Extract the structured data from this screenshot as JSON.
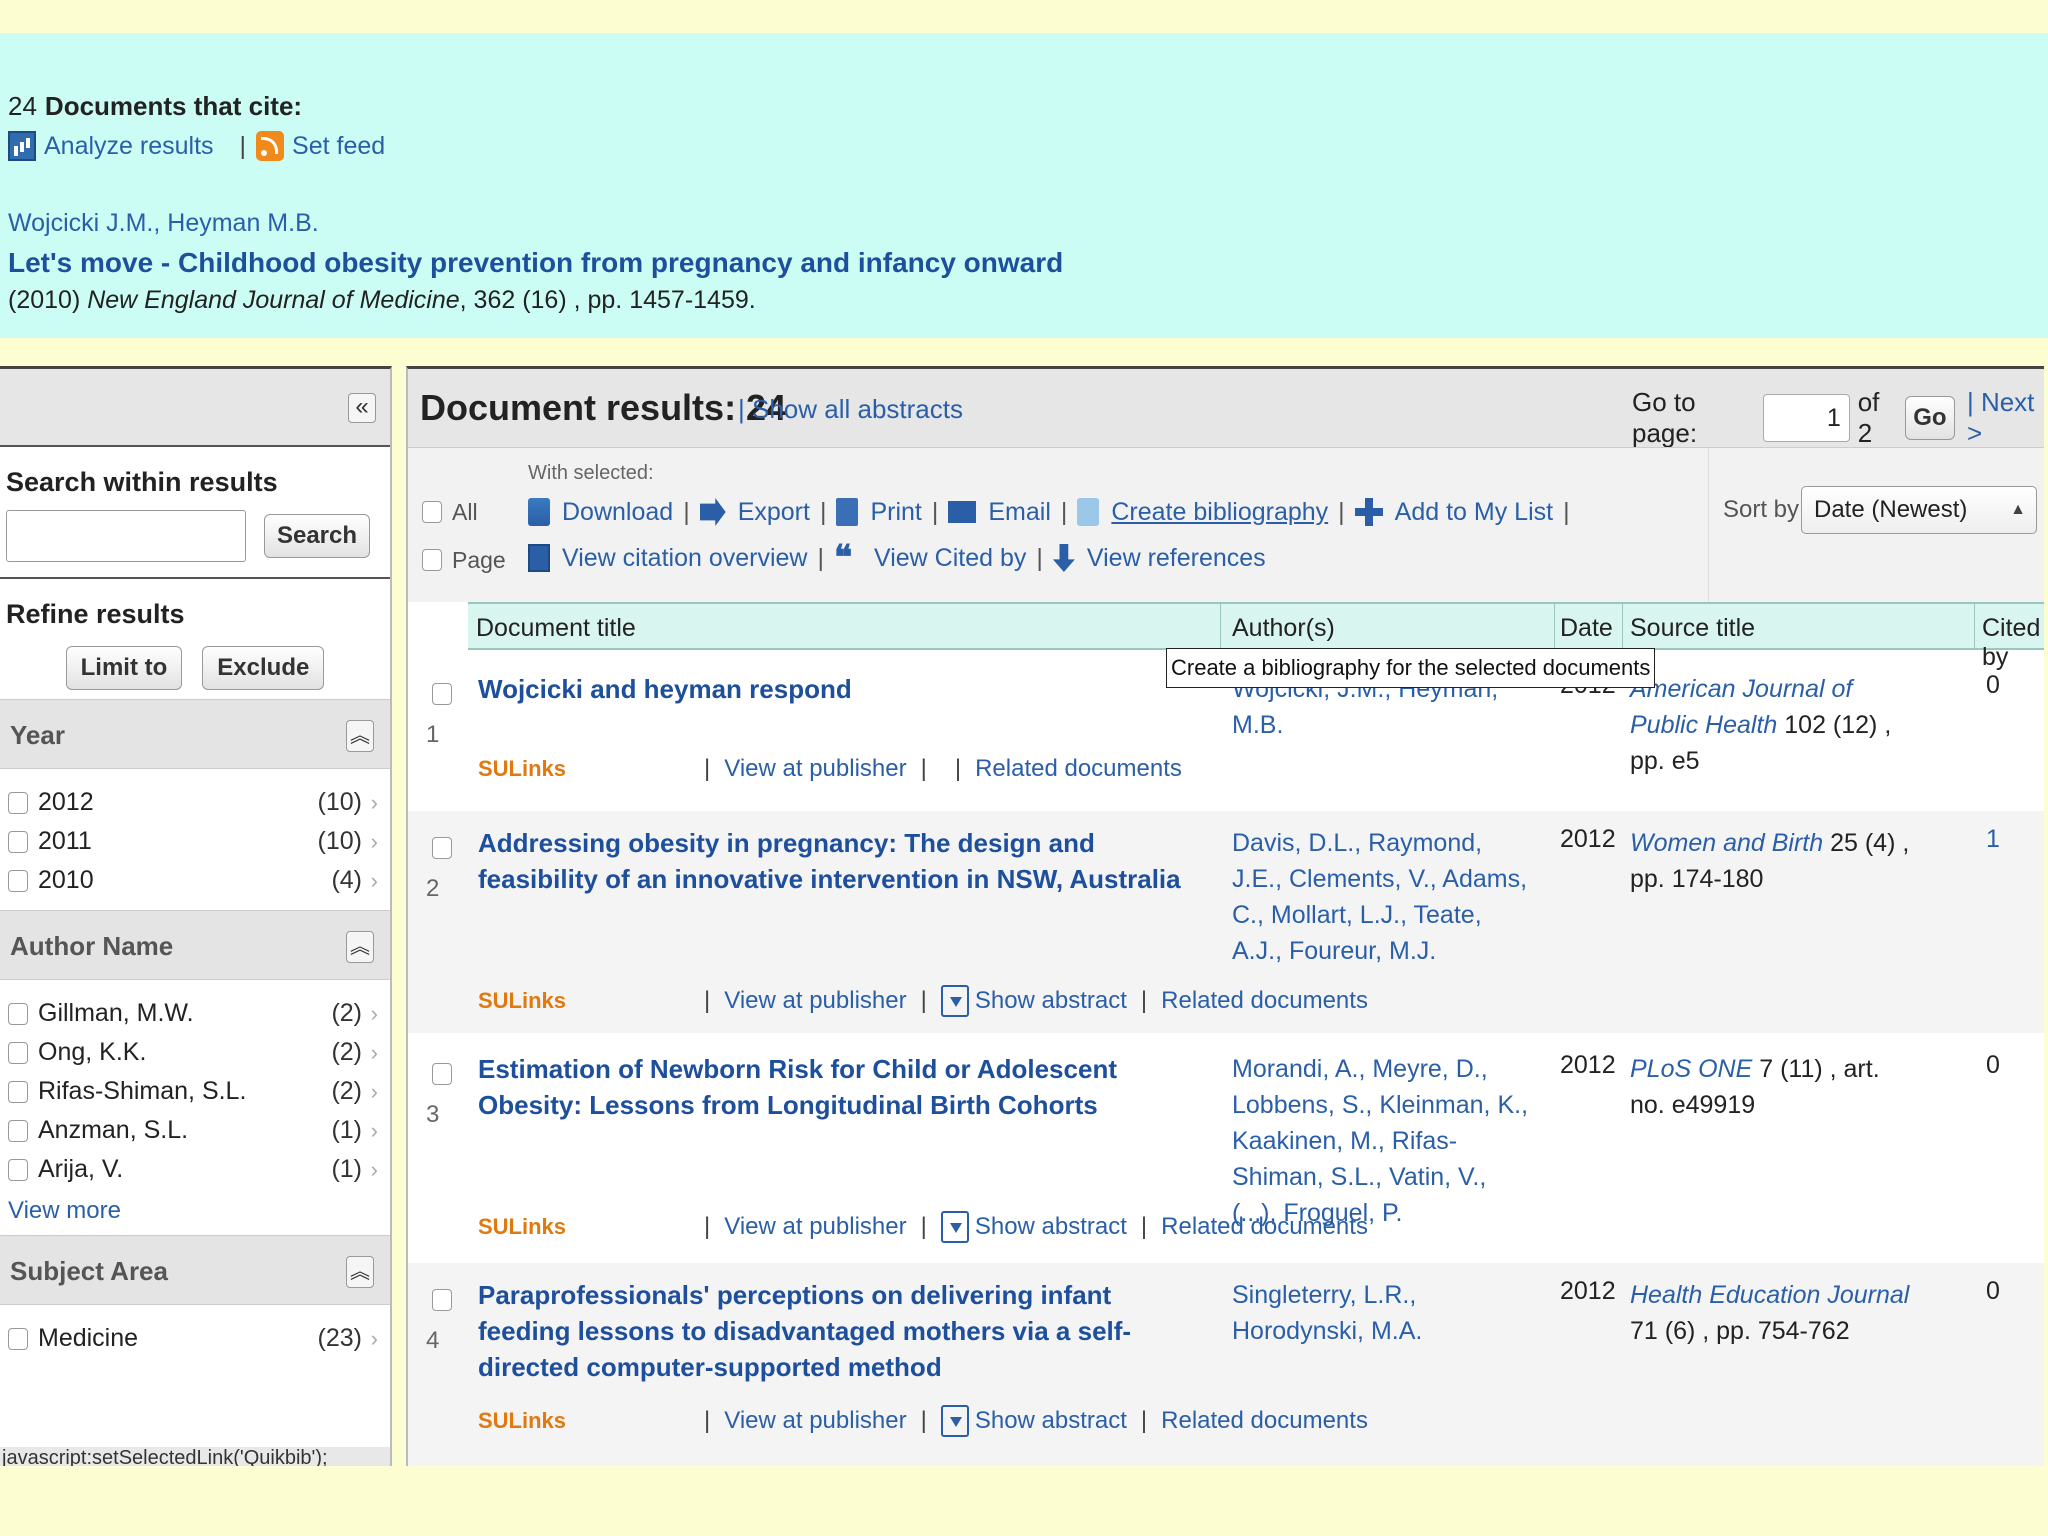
{
  "header": {
    "count": "24",
    "cite_label": "Documents that cite:",
    "analyze_label": "Analyze results",
    "feed_label": "Set feed",
    "authors": "Wojcicki J.M., Heyman M.B.",
    "title": "Let's move - Childhood obesity prevention from pregnancy and infancy onward",
    "source_year": "(2010)",
    "source_journal": "New England Journal of Medicine",
    "source_rest": ", 362 (16) , pp. 1457-1459."
  },
  "sidebar": {
    "search_heading": "Search within results",
    "search_button": "Search",
    "refine_heading": "Refine results",
    "limit_button": "Limit to",
    "exclude_button": "Exclude",
    "facets": [
      {
        "title": "Year",
        "items": [
          {
            "label": "2012",
            "count": "(10)"
          },
          {
            "label": "2011",
            "count": "(10)"
          },
          {
            "label": "2010",
            "count": "(4)"
          }
        ]
      },
      {
        "title": "Author Name",
        "items": [
          {
            "label": "Gillman, M.W.",
            "count": "(2)"
          },
          {
            "label": "Ong, K.K.",
            "count": "(2)"
          },
          {
            "label": "Rifas-Shiman, S.L.",
            "count": "(2)"
          },
          {
            "label": "Anzman, S.L.",
            "count": "(1)"
          },
          {
            "label": "Arija, V.",
            "count": "(1)"
          }
        ],
        "view_more": "View more"
      },
      {
        "title": "Subject Area",
        "items": [
          {
            "label": "Medicine",
            "count": "(23)"
          }
        ]
      }
    ],
    "status_url": "javascript:setSelectedLink('Quikbib');"
  },
  "results": {
    "heading": "Document results: 24",
    "show_abstracts": "Show all abstracts",
    "goto_label": "Go to page:",
    "page_value": "1",
    "of_pages": "of 2",
    "go_button": "Go",
    "next_label": "Next >",
    "check_all": "All",
    "check_page": "Page",
    "with_selected": "With selected:",
    "actions_row1": [
      "Download",
      "Export",
      "Print",
      "Email",
      "Create bibliography",
      "Add to My List"
    ],
    "actions_row2": [
      "View citation overview",
      "View Cited by",
      "View references"
    ],
    "sort_label": "Sort by",
    "sort_value": "Date (Newest)",
    "tooltip": "Create a bibliography for the selected documents",
    "columns": [
      "Document title",
      "Author(s)",
      "Date",
      "Source title",
      "Cited by"
    ],
    "link_sulinks": "SULinks",
    "link_publisher": "View at publisher",
    "link_abstract": "Show abstract",
    "link_related": "Related documents",
    "rows": [
      {
        "num": "1",
        "title": "Wojcicki and heyman respond",
        "authors": "Wojcicki, J.M., Heyman, M.B.",
        "year": "2012",
        "journal": "American Journal of Public Health",
        "details": " 102 (12) , pp. e5",
        "cited": "0"
      },
      {
        "num": "2",
        "title": "Addressing obesity in pregnancy: The design and feasibility of an innovative intervention in NSW, Australia",
        "authors": "Davis, D.L., Raymond, J.E., Clements, V., Adams, C., Mollart, L.J., Teate, A.J., Foureur, M.J.",
        "year": "2012",
        "journal": "Women and Birth",
        "details": " 25 (4) , pp. 174-180",
        "cited": "1"
      },
      {
        "num": "3",
        "title": "Estimation of Newborn Risk for Child or Adolescent Obesity: Lessons from Longitudinal Birth Cohorts",
        "authors": "Morandi, A., Meyre, D., Lobbens, S., Kleinman, K., Kaakinen, M., Rifas-Shiman, S.L., Vatin, V., (...), Froguel, P.",
        "year": "2012",
        "journal": "PLoS ONE",
        "details": " 7 (11) , art. no. e49919",
        "cited": "0"
      },
      {
        "num": "4",
        "title": "Paraprofessionals' perceptions on delivering infant feeding lessons to disadvantaged mothers via a self-directed computer-supported method",
        "authors": "Singleterry, L.R., Horodynski, M.A.",
        "year": "2012",
        "journal": "Health Education Journal",
        "details": " 71 (6) , pp. 754-762",
        "cited": "0"
      }
    ]
  }
}
